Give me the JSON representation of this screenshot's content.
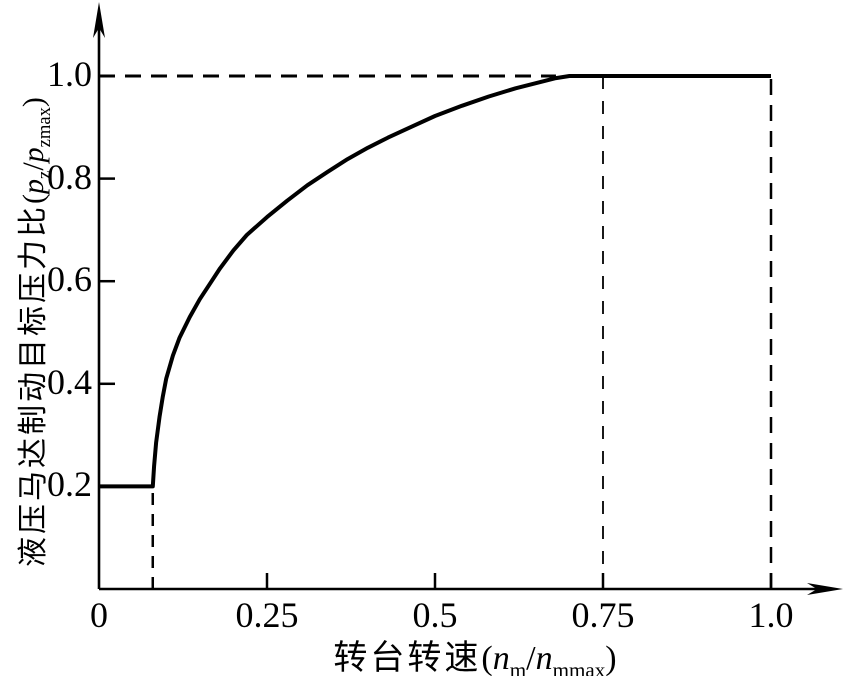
{
  "figure": {
    "background_color": "#ffffff",
    "ink_color": "#000000"
  },
  "y_axis_label": {
    "cn": "液压马达制动目标压力比",
    "open": "(",
    "var1": "p",
    "sub1": "z",
    "slash": "/",
    "var2": "p",
    "sub2": "zmax",
    "close": ")"
  },
  "x_axis_label": {
    "cn": "转台转速",
    "open": "(",
    "var1": "n",
    "sub1": "m",
    "slash": "/",
    "var2": "n",
    "sub2": "mmax",
    "close": ")"
  },
  "chart_data": {
    "type": "line",
    "title": "",
    "xlabel": "转台转速(nm/nmmax)",
    "ylabel": "液压马达制动目标压力比(pz/pzmax)",
    "xlim": [
      0,
      1.1
    ],
    "ylim": [
      0,
      1.15
    ],
    "grid": false,
    "legend": false,
    "x_ticks": [
      {
        "value": 0,
        "label": "0"
      },
      {
        "value": 0.25,
        "label": "0.25"
      },
      {
        "value": 0.5,
        "label": "0.5"
      },
      {
        "value": 0.75,
        "label": "0.75"
      },
      {
        "value": 1.0,
        "label": "1.0"
      }
    ],
    "y_ticks": [
      {
        "value": 0.2,
        "label": "0.2"
      },
      {
        "value": 0.4,
        "label": "0.4"
      },
      {
        "value": 0.6,
        "label": "0.6"
      },
      {
        "value": 0.8,
        "label": "0.8"
      },
      {
        "value": 1.0,
        "label": "1.0"
      }
    ],
    "series": [
      {
        "name": "brake-target-pressure-ratio-curve",
        "color": "#000000",
        "points": [
          [
            0,
            0.2
          ],
          [
            0.08,
            0.2
          ],
          [
            0.082,
            0.24
          ],
          [
            0.085,
            0.285
          ],
          [
            0.09,
            0.335
          ],
          [
            0.095,
            0.375
          ],
          [
            0.1,
            0.41
          ],
          [
            0.11,
            0.455
          ],
          [
            0.12,
            0.49
          ],
          [
            0.135,
            0.53
          ],
          [
            0.15,
            0.565
          ],
          [
            0.165,
            0.595
          ],
          [
            0.18,
            0.625
          ],
          [
            0.2,
            0.66
          ],
          [
            0.22,
            0.69
          ],
          [
            0.25,
            0.725
          ],
          [
            0.28,
            0.757
          ],
          [
            0.31,
            0.787
          ],
          [
            0.34,
            0.813
          ],
          [
            0.37,
            0.838
          ],
          [
            0.4,
            0.86
          ],
          [
            0.43,
            0.88
          ],
          [
            0.46,
            0.898
          ],
          [
            0.5,
            0.922
          ],
          [
            0.54,
            0.942
          ],
          [
            0.58,
            0.96
          ],
          [
            0.62,
            0.976
          ],
          [
            0.65,
            0.986
          ],
          [
            0.68,
            0.996
          ],
          [
            0.7,
            1.0
          ],
          [
            1.0,
            1.0
          ]
        ]
      }
    ],
    "ref_lines": [
      {
        "name": "dashed-h-ratio-1.0",
        "orient": "h",
        "at": 1.0,
        "from": 0,
        "to": 0.68,
        "dash": "16,10",
        "width": 3
      },
      {
        "name": "dashed-v-speed-0.08",
        "orient": "v",
        "at": 0.08,
        "from": 0,
        "to": 0.2,
        "dash": "12,9",
        "width": 2.5
      },
      {
        "name": "dashed-v-speed-0.75",
        "orient": "v",
        "at": 0.75,
        "from": 0,
        "to": 1.0,
        "dash": "13,12",
        "width": 1.8
      },
      {
        "name": "dashed-v-speed-1.0",
        "orient": "v",
        "at": 1.0,
        "from": 0,
        "to": 1.0,
        "dash": "16,10",
        "width": 2.5
      }
    ]
  }
}
